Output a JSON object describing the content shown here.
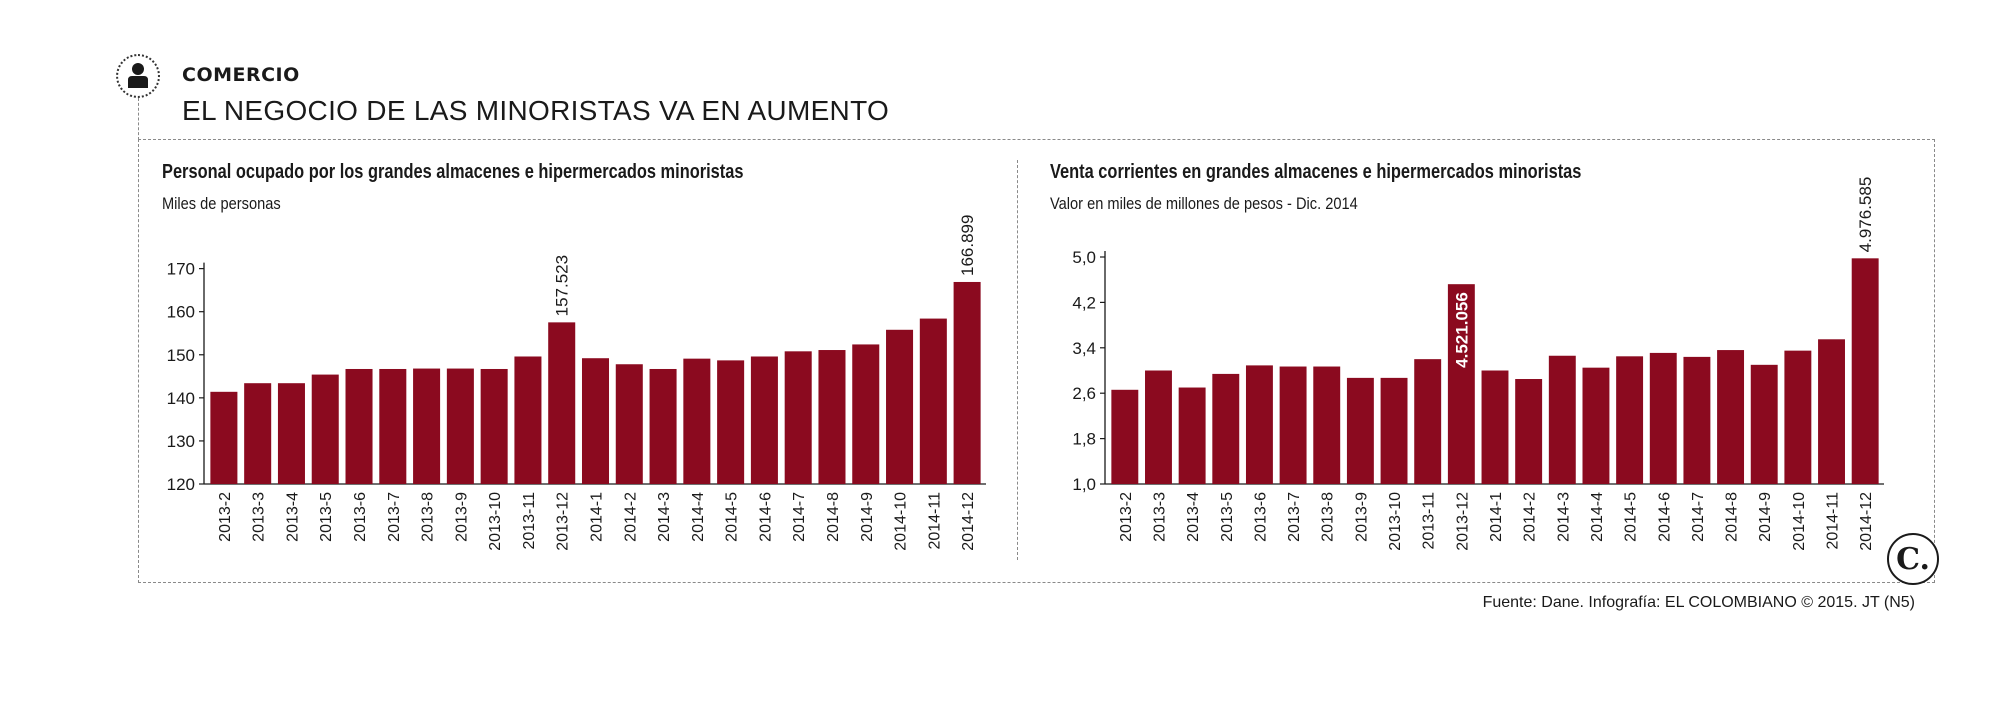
{
  "header": {
    "kicker": "COMERCIO",
    "headline": "EL NEGOCIO DE LAS MINORISTAS VA EN AUMENTO"
  },
  "colors": {
    "bar": "#8b0a1f",
    "text": "#1a1a1a"
  },
  "icons": {
    "section": "person-icon",
    "brand": "el-colombiano-logo"
  },
  "chart_data": [
    {
      "type": "bar",
      "title": "Personal ocupado por los grandes almacenes e hipermercados minoristas",
      "subtitle": "Miles de personas",
      "categories": [
        "2013-2",
        "2013-3",
        "2013-4",
        "2013-5",
        "2013-6",
        "2013-7",
        "2013-8",
        "2013-9",
        "2013-10",
        "2013-11",
        "2013-12",
        "2014-1",
        "2014-2",
        "2014-3",
        "2014-4",
        "2014-5",
        "2014-6",
        "2014-7",
        "2014-8",
        "2014-9",
        "2014-10",
        "2014-11",
        "2014-12"
      ],
      "values": [
        141.4,
        143.4,
        143.4,
        145.4,
        146.7,
        146.7,
        146.8,
        146.8,
        146.7,
        149.6,
        157.523,
        149.2,
        147.8,
        146.7,
        149.1,
        148.7,
        149.6,
        150.8,
        151.1,
        152.4,
        155.8,
        158.4,
        166.899
      ],
      "ylim": [
        120,
        172
      ],
      "yticks": [
        120,
        130,
        140,
        150,
        160,
        170
      ],
      "ytick_labels": [
        "120",
        "130",
        "140",
        "150",
        "160",
        "170"
      ],
      "annotations": [
        {
          "index": 10,
          "text": "157.523",
          "style": "plain"
        },
        {
          "index": 22,
          "text": "166.899",
          "style": "plain"
        }
      ]
    },
    {
      "type": "bar",
      "title": "Venta corrientes en grandes almacenes e hipermercados minoristas",
      "subtitle": "Valor en miles de millones de pesos - Dic. 2014",
      "categories": [
        "2013-2",
        "2013-3",
        "2013-4",
        "2013-5",
        "2013-6",
        "2013-7",
        "2013-8",
        "2013-9",
        "2013-10",
        "2013-11",
        "2013-12",
        "2014-1",
        "2014-2",
        "2014-3",
        "2014-4",
        "2014-5",
        "2014-6",
        "2014-7",
        "2014-8",
        "2014-9",
        "2014-10",
        "2014-11",
        "2014-12"
      ],
      "values": [
        2.66,
        3.0,
        2.7,
        2.94,
        3.09,
        3.07,
        3.07,
        2.87,
        2.87,
        3.2,
        4.521056,
        3.0,
        2.85,
        3.26,
        3.05,
        3.25,
        3.31,
        3.24,
        3.36,
        3.1,
        3.35,
        3.55,
        4.976585
      ],
      "ylim": [
        1.0,
        5.0
      ],
      "yticks": [
        1.0,
        1.8,
        2.6,
        3.4,
        4.2,
        5.0
      ],
      "ytick_labels": [
        "1,0",
        "1,8",
        "2,6",
        "3,4",
        "4,2",
        "5,0"
      ],
      "annotations": [
        {
          "index": 10,
          "text": "4.521.056",
          "style": "inside"
        },
        {
          "index": 22,
          "text": "4.976.585",
          "style": "plain"
        }
      ]
    }
  ],
  "footer": {
    "source": "Fuente: Dane. Infografía: EL COLOMBIANO © 2015. JT (N5)",
    "logo_text": "C."
  }
}
